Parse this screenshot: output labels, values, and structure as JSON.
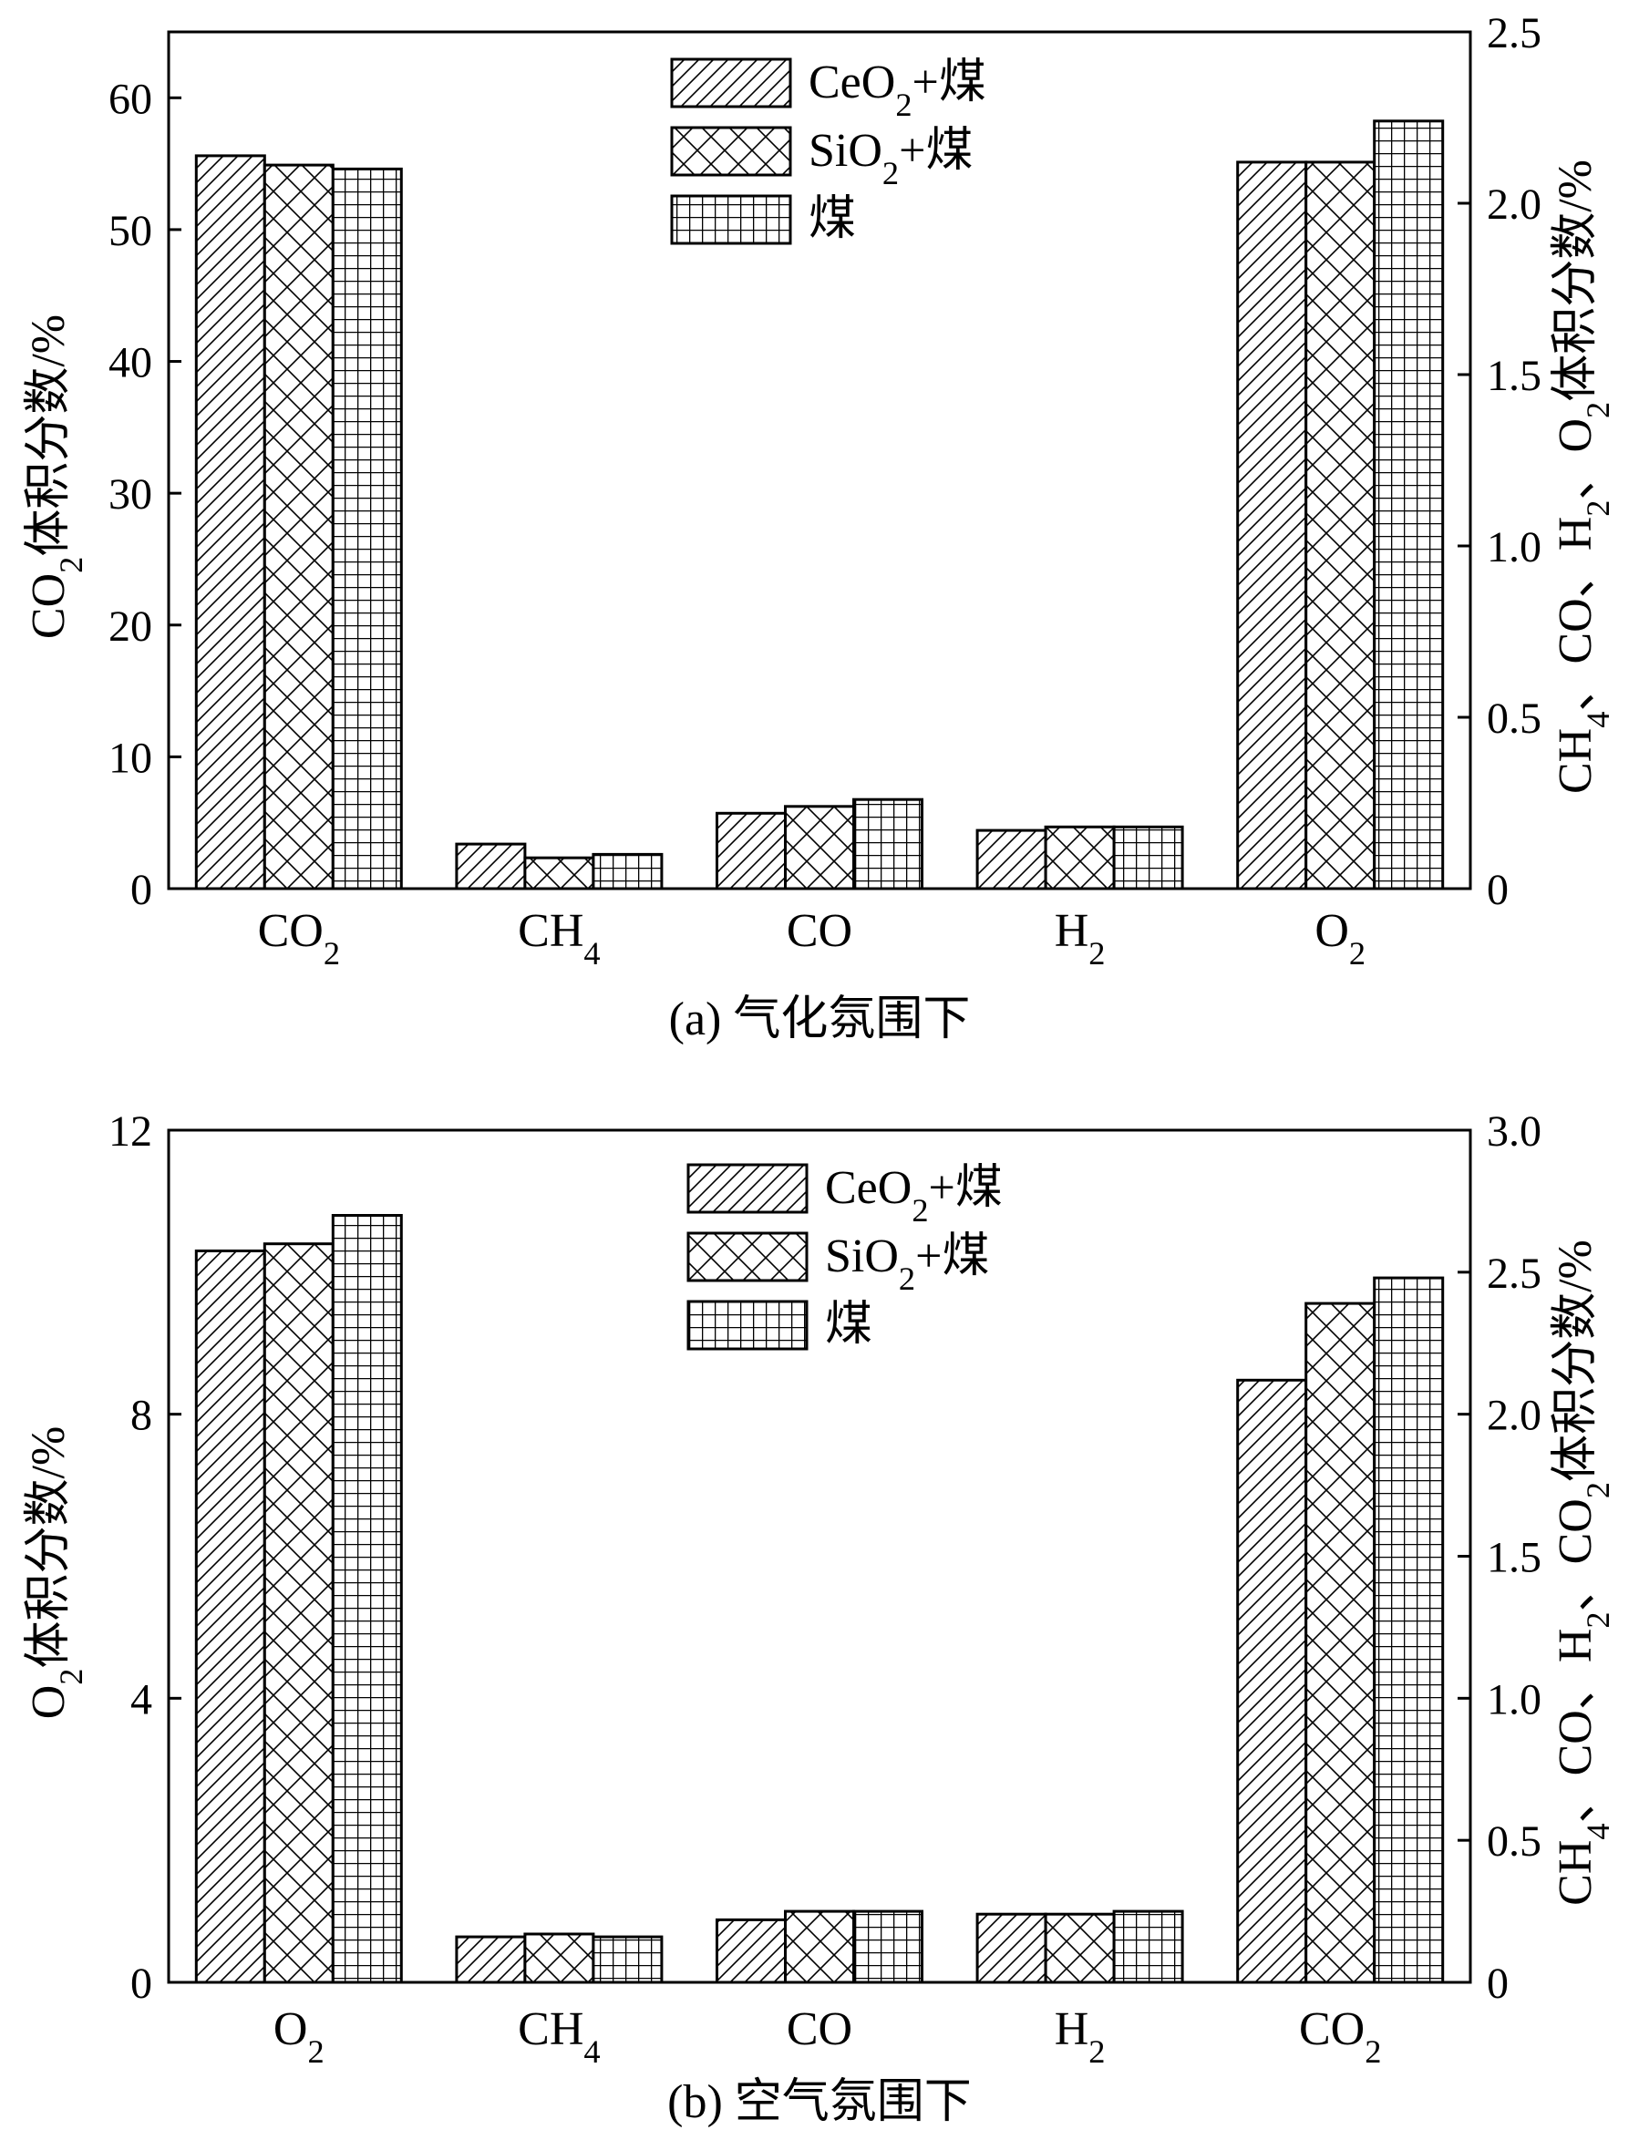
{
  "chart_data": [
    {
      "id": "a",
      "type": "bar",
      "caption": "(a) 气化氛围下",
      "categories": [
        "CO2",
        "CH4",
        "CO",
        "H2",
        "O2"
      ],
      "category_labels": [
        {
          "main": "CO",
          "sub": "2"
        },
        {
          "main": "CH",
          "sub": "4"
        },
        {
          "main": "CO",
          "sub": ""
        },
        {
          "main": "H",
          "sub": "2"
        },
        {
          "main": "O",
          "sub": "2"
        }
      ],
      "category_axis": [
        "left",
        "right",
        "right",
        "right",
        "right"
      ],
      "series": [
        {
          "name": "CeO2+煤",
          "label": {
            "main": "CeO",
            "sub": "2",
            "tail": "+煤"
          },
          "pattern": "diagonal",
          "values": [
            55.6,
            0.13,
            0.22,
            0.17,
            2.12
          ]
        },
        {
          "name": "SiO2+煤",
          "label": {
            "main": "SiO",
            "sub": "2",
            "tail": "+煤"
          },
          "pattern": "crosshatch",
          "values": [
            54.9,
            0.09,
            0.24,
            0.18,
            2.12
          ]
        },
        {
          "name": "煤",
          "label": {
            "main": "煤",
            "sub": "",
            "tail": ""
          },
          "pattern": "grid",
          "values": [
            54.6,
            0.1,
            0.26,
            0.18,
            2.24
          ]
        }
      ],
      "y_left": {
        "label_parts": [
          {
            "t": "CO"
          },
          {
            "t": "2",
            "sub": true
          },
          {
            "t": "体积分数/%"
          }
        ],
        "lim": [
          0,
          65
        ],
        "ticks": [
          0,
          10,
          20,
          30,
          40,
          50,
          60
        ],
        "tick_labels": [
          "0",
          "10",
          "20",
          "30",
          "40",
          "50",
          "60"
        ]
      },
      "y_right": {
        "label_parts": [
          {
            "t": "CH"
          },
          {
            "t": "4",
            "sub": true
          },
          {
            "t": "、CO、H"
          },
          {
            "t": "2",
            "sub": true
          },
          {
            "t": "、O"
          },
          {
            "t": "2",
            "sub": true
          },
          {
            "t": "体积分数/%"
          }
        ],
        "lim": [
          0,
          2.5
        ],
        "ticks": [
          0,
          0.5,
          1.0,
          1.5,
          2.0,
          2.5
        ],
        "tick_labels": [
          "0",
          "0.5",
          "1.0",
          "1.5",
          "2.0",
          "2.5"
        ]
      },
      "legend_position": "top-center"
    },
    {
      "id": "b",
      "type": "bar",
      "caption": "(b) 空气氛围下",
      "categories": [
        "O2",
        "CH4",
        "CO",
        "H2",
        "CO2"
      ],
      "category_labels": [
        {
          "main": "O",
          "sub": "2"
        },
        {
          "main": "CH",
          "sub": "4"
        },
        {
          "main": "CO",
          "sub": ""
        },
        {
          "main": "H",
          "sub": "2"
        },
        {
          "main": "CO",
          "sub": "2"
        }
      ],
      "category_axis": [
        "left",
        "right",
        "right",
        "right",
        "right"
      ],
      "series": [
        {
          "name": "CeO2+煤",
          "label": {
            "main": "CeO",
            "sub": "2",
            "tail": "+煤"
          },
          "pattern": "diagonal",
          "values": [
            10.3,
            0.16,
            0.22,
            0.24,
            2.12
          ]
        },
        {
          "name": "SiO2+煤",
          "label": {
            "main": "SiO",
            "sub": "2",
            "tail": "+煤"
          },
          "pattern": "crosshatch",
          "values": [
            10.4,
            0.17,
            0.25,
            0.24,
            2.39
          ]
        },
        {
          "name": "煤",
          "label": {
            "main": "煤",
            "sub": "",
            "tail": ""
          },
          "pattern": "grid",
          "values": [
            10.8,
            0.16,
            0.25,
            0.25,
            2.48
          ]
        }
      ],
      "y_left": {
        "label_parts": [
          {
            "t": "O"
          },
          {
            "t": "2",
            "sub": true
          },
          {
            "t": "体积分数/%"
          }
        ],
        "lim": [
          0,
          12
        ],
        "ticks": [
          0,
          4,
          8,
          12
        ],
        "tick_labels": [
          "0",
          "4",
          "8",
          "12"
        ]
      },
      "y_right": {
        "label_parts": [
          {
            "t": "CH"
          },
          {
            "t": "4",
            "sub": true
          },
          {
            "t": "、CO、H"
          },
          {
            "t": "2",
            "sub": true
          },
          {
            "t": "、CO"
          },
          {
            "t": "2",
            "sub": true
          },
          {
            "t": "体积分数/%"
          }
        ],
        "lim": [
          0,
          3.0
        ],
        "ticks": [
          0,
          0.5,
          1.0,
          1.5,
          2.0,
          2.5,
          3.0
        ],
        "tick_labels": [
          "0",
          "0.5",
          "1.0",
          "1.5",
          "2.0",
          "2.5",
          "3.0"
        ]
      },
      "legend_position": "top-center"
    }
  ]
}
